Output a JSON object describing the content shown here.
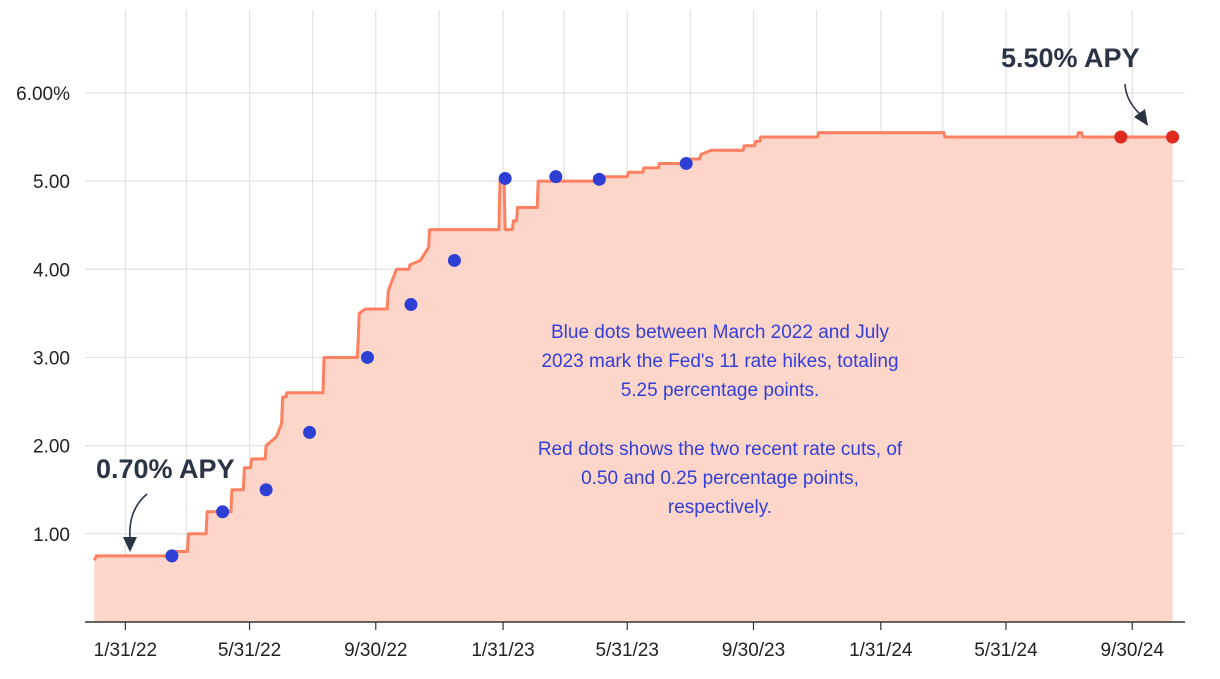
{
  "chart_data": {
    "type": "area",
    "title": "",
    "xlabel": "",
    "ylabel": "",
    "xlim": [
      "2021-12-23",
      "2024-11-20"
    ],
    "ylim": [
      0,
      6.6
    ],
    "grid": true,
    "y_ticks": [
      1,
      2,
      3,
      4,
      5,
      6
    ],
    "y_tick_labels": [
      "1.00",
      "2.00",
      "3.00",
      "4.00",
      "5.00",
      "6.00%"
    ],
    "x_ticks": [
      "2022-01-31",
      "2022-05-31",
      "2022-09-30",
      "2023-01-31",
      "2023-05-31",
      "2023-09-30",
      "2024-01-31",
      "2024-05-31",
      "2024-09-30"
    ],
    "x_tick_labels": [
      "1/31/22",
      "5/31/22",
      "9/30/22",
      "1/31/23",
      "5/31/23",
      "9/30/23",
      "1/31/24",
      "5/31/24",
      "9/30/24"
    ],
    "colors": {
      "line": "#ff8060",
      "area": "#fdd5c9",
      "hike_dot": "#2e3fd3",
      "cut_dot": "#e02a20",
      "grid": "#e2e2e2",
      "callout": "#2b3447",
      "note": "#3340d8"
    },
    "series": [
      {
        "points": [
          [
            "2022-01-01",
            0.7
          ],
          [
            "2022-01-03",
            0.75
          ],
          [
            "2022-03-14",
            0.75
          ],
          [
            "2022-03-15",
            0.8
          ],
          [
            "2022-04-01",
            0.8
          ],
          [
            "2022-04-02",
            1.0
          ],
          [
            "2022-04-19",
            1.0
          ],
          [
            "2022-04-20",
            1.25
          ],
          [
            "2022-05-13",
            1.25
          ],
          [
            "2022-05-14",
            1.5
          ],
          [
            "2022-05-25",
            1.5
          ],
          [
            "2022-05-26",
            1.75
          ],
          [
            "2022-06-01",
            1.75
          ],
          [
            "2022-06-02",
            1.85
          ],
          [
            "2022-06-15",
            1.85
          ],
          [
            "2022-06-16",
            2.0
          ],
          [
            "2022-06-26",
            2.1
          ],
          [
            "2022-07-01",
            2.25
          ],
          [
            "2022-07-02",
            2.55
          ],
          [
            "2022-07-05",
            2.55
          ],
          [
            "2022-07-06",
            2.6
          ],
          [
            "2022-08-10",
            2.6
          ],
          [
            "2022-08-11",
            3.0
          ],
          [
            "2022-09-12",
            3.0
          ],
          [
            "2022-09-13",
            3.2
          ],
          [
            "2022-09-14",
            3.5
          ],
          [
            "2022-09-20",
            3.55
          ],
          [
            "2022-10-11",
            3.55
          ],
          [
            "2022-10-12",
            3.75
          ],
          [
            "2022-10-15",
            3.85
          ],
          [
            "2022-10-20",
            4.0
          ],
          [
            "2022-11-01",
            4.0
          ],
          [
            "2022-11-02",
            4.05
          ],
          [
            "2022-11-12",
            4.1
          ],
          [
            "2022-11-20",
            4.25
          ],
          [
            "2022-11-21",
            4.45
          ],
          [
            "2023-01-27",
            4.45
          ],
          [
            "2023-01-28",
            5.0
          ],
          [
            "2023-02-01",
            5.0
          ],
          [
            "2023-02-02",
            4.45
          ],
          [
            "2023-02-09",
            4.45
          ],
          [
            "2023-02-10",
            4.55
          ],
          [
            "2023-02-13",
            4.55
          ],
          [
            "2023-02-14",
            4.7
          ],
          [
            "2023-03-05",
            4.7
          ],
          [
            "2023-03-06",
            5.0
          ],
          [
            "2023-04-30",
            5.0
          ],
          [
            "2023-05-01",
            5.05
          ],
          [
            "2023-05-31",
            5.05
          ],
          [
            "2023-06-01",
            5.1
          ],
          [
            "2023-06-15",
            5.1
          ],
          [
            "2023-06-16",
            5.15
          ],
          [
            "2023-06-30",
            5.15
          ],
          [
            "2023-07-01",
            5.2
          ],
          [
            "2023-07-26",
            5.2
          ],
          [
            "2023-07-27",
            5.25
          ],
          [
            "2023-08-09",
            5.25
          ],
          [
            "2023-08-10",
            5.3
          ],
          [
            "2023-08-20",
            5.35
          ],
          [
            "2023-09-20",
            5.35
          ],
          [
            "2023-09-21",
            5.4
          ],
          [
            "2023-10-01",
            5.4
          ],
          [
            "2023-10-02",
            5.45
          ],
          [
            "2023-10-06",
            5.45
          ],
          [
            "2023-10-07",
            5.5
          ],
          [
            "2023-12-01",
            5.5
          ],
          [
            "2023-12-02",
            5.55
          ],
          [
            "2024-04-01",
            5.55
          ],
          [
            "2024-04-02",
            5.5
          ],
          [
            "2024-08-08",
            5.5
          ],
          [
            "2024-08-09",
            5.55
          ],
          [
            "2024-08-12",
            5.55
          ],
          [
            "2024-08-13",
            5.5
          ],
          [
            "2024-11-08",
            5.5
          ]
        ]
      }
    ],
    "rate_hike_dots": [
      [
        "2022-03-17",
        0.75
      ],
      [
        "2022-05-05",
        1.25
      ],
      [
        "2022-06-16",
        1.5
      ],
      [
        "2022-07-28",
        2.15
      ],
      [
        "2022-09-22",
        3.0
      ],
      [
        "2022-11-03",
        3.6
      ],
      [
        "2022-12-15",
        4.1
      ],
      [
        "2023-02-02",
        5.03
      ],
      [
        "2023-03-23",
        5.05
      ],
      [
        "2023-05-04",
        5.02
      ],
      [
        "2023-07-27",
        5.2
      ]
    ],
    "rate_cut_dots": [
      [
        "2024-09-19",
        5.5
      ],
      [
        "2024-11-08",
        5.5
      ]
    ],
    "annotations": {
      "start_callout": "0.70% APY",
      "end_callout": "5.50% APY",
      "note_line_1": "Blue dots between March 2022 and July",
      "note_line_2": "2023 mark the Fed's 11 rate hikes, totaling",
      "note_line_3": "5.25 percentage points.",
      "note_line_4": "Red dots shows the two recent rate cuts, of",
      "note_line_5": "0.50 and 0.25 percentage points,",
      "note_line_6": "respectively."
    }
  }
}
